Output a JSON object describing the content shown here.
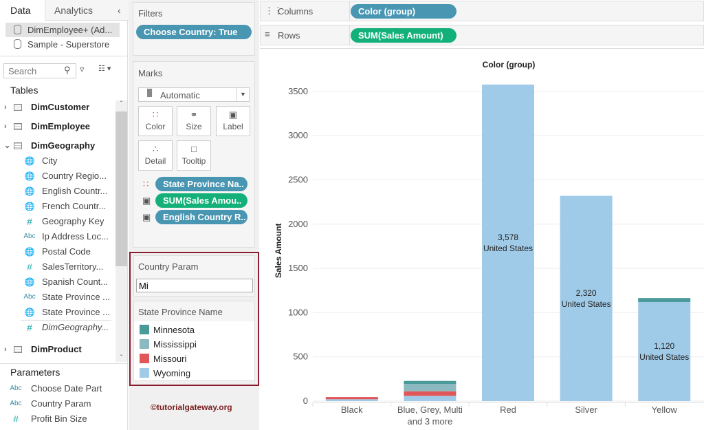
{
  "sidebar": {
    "tabs": [
      "Data",
      "Analytics"
    ],
    "collapse_icon": "chevron-left-icon",
    "datasources": [
      "DimEmployee+ (Ad...",
      "Sample - Superstore"
    ],
    "search_placeholder": "Search",
    "tables_heading": "Tables",
    "tables": [
      {
        "name": "DimCustomer",
        "expanded": false
      },
      {
        "name": "DimEmployee",
        "expanded": false
      },
      {
        "name": "DimGeography",
        "expanded": true
      }
    ],
    "fields": [
      {
        "type": "globe",
        "label": "City"
      },
      {
        "type": "globe",
        "label": "Country Regio..."
      },
      {
        "type": "globe",
        "label": "English Countr..."
      },
      {
        "type": "globe",
        "label": "French Countr..."
      },
      {
        "type": "#",
        "label": "Geography Key"
      },
      {
        "type": "Abc",
        "label": "Ip Address Loc..."
      },
      {
        "type": "globe",
        "label": "Postal Code"
      },
      {
        "type": "#",
        "label": "SalesTerritory..."
      },
      {
        "type": "globe",
        "label": "Spanish Count..."
      },
      {
        "type": "Abc",
        "label": "State Province ..."
      },
      {
        "type": "globe",
        "label": "State Province ..."
      },
      {
        "type": "#",
        "label": "DimGeography..."
      }
    ],
    "product_table": "DimProduct",
    "parameters_heading": "Parameters",
    "parameters": [
      {
        "type": "Abc",
        "label": "Choose Date Part"
      },
      {
        "type": "Abc",
        "label": "Country Param"
      },
      {
        "type": "#",
        "label": "Profit Bin Size"
      }
    ]
  },
  "filters": {
    "title": "Filters",
    "pill": "Choose Country: True"
  },
  "marks": {
    "title": "Marks",
    "type": "Automatic",
    "buttons": [
      "Color",
      "Size",
      "Label",
      "Detail",
      "Tooltip"
    ],
    "pills": [
      "State Province Na..",
      "SUM(Sales Amou..",
      "English Country R.."
    ]
  },
  "param_card": {
    "title": "Country Param",
    "value": "Mi"
  },
  "legend": {
    "title": "State Province Name",
    "items": [
      {
        "label": "Minnesota",
        "color": "#4a9a99"
      },
      {
        "label": "Mississippi",
        "color": "#8cb8bf"
      },
      {
        "label": "Missouri",
        "color": "#e15759"
      },
      {
        "label": "Wyoming",
        "color": "#a0cbe8"
      }
    ]
  },
  "watermark": "©tutorialgateway.org",
  "shelves": {
    "columns_label": "Columns",
    "columns_pill": "Color (group)",
    "rows_label": "Rows",
    "rows_pill": "SUM(Sales Amount)"
  },
  "chart_data": {
    "type": "bar",
    "stacked": true,
    "title": "Color (group)",
    "xlabel": "",
    "ylabel": "Sales Amount",
    "ylim": [
      0,
      3700
    ],
    "yticks": [
      0,
      500,
      1000,
      1500,
      2000,
      2500,
      3000,
      3500
    ],
    "categories": [
      "Black",
      "Blue, Grey, Multi\nand 3 more",
      "Red",
      "Silver",
      "Yellow"
    ],
    "series": [
      {
        "name": "Wyoming",
        "color": "#a0cbe8",
        "values": [
          21,
          59,
          3578,
          2320,
          1120
        ]
      },
      {
        "name": "Missouri",
        "color": "#e15759",
        "values": [
          25,
          52,
          0,
          0,
          0
        ]
      },
      {
        "name": "Mississippi",
        "color": "#8cb8bf",
        "values": [
          0,
          83,
          0,
          0,
          0
        ]
      },
      {
        "name": "Minnesota",
        "color": "#4a9a99",
        "values": [
          0,
          34,
          0,
          0,
          45
        ]
      }
    ],
    "labels": [
      null,
      null,
      {
        "value": "3,578",
        "country": "United States"
      },
      {
        "value": "2,320",
        "country": "United States"
      },
      {
        "value": "1,120",
        "country": "United States"
      }
    ]
  }
}
